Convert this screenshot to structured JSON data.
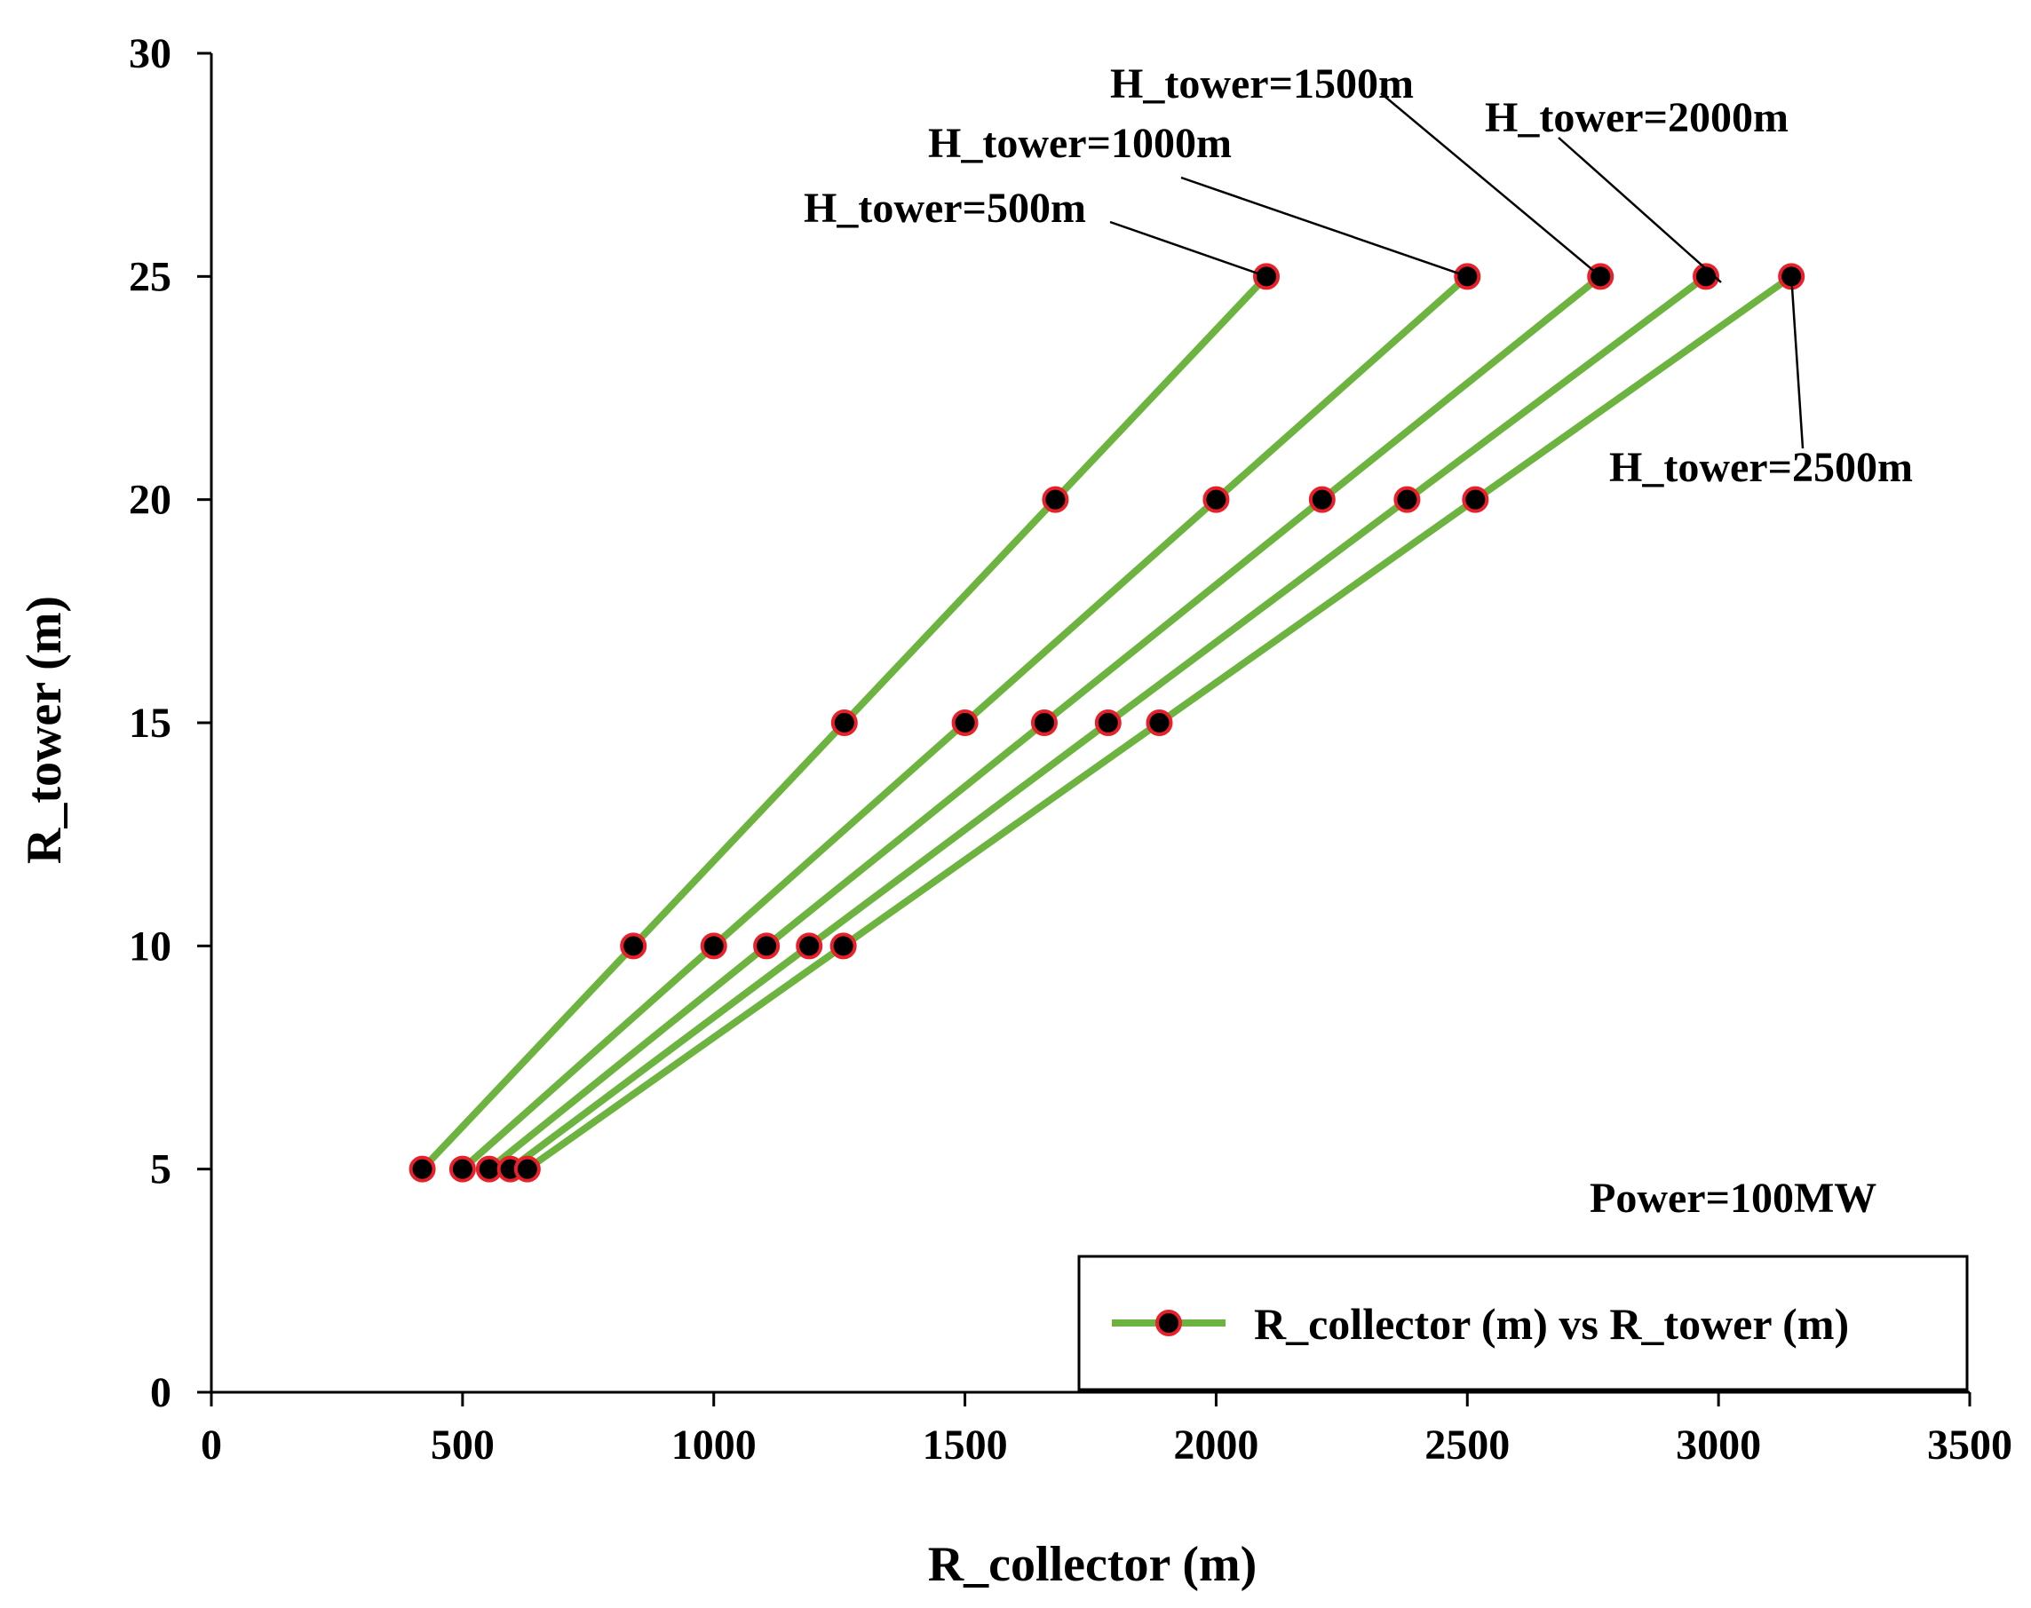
{
  "chart_data": {
    "type": "line",
    "xlabel": "R_collector (m)",
    "ylabel": "R_tower (m)",
    "xlim": [
      0,
      3500
    ],
    "ylim": [
      0,
      30
    ],
    "xticks": [
      0,
      500,
      1000,
      1500,
      2000,
      2500,
      3000,
      3500
    ],
    "yticks": [
      0,
      5,
      10,
      15,
      20,
      25,
      30
    ],
    "grid": false,
    "legend_position": "bottom-right",
    "legend_label": "R_collector (m) vs R_tower (m)",
    "line_color": "#6db33f",
    "marker_fill": "#000000",
    "marker_edge": "#e8202a",
    "power_note": "Power=100MW",
    "series": [
      {
        "name": "H_tower=500m",
        "x": [
          420,
          840,
          1260,
          1680,
          2100
        ],
        "y": [
          5,
          10,
          15,
          20,
          25
        ]
      },
      {
        "name": "H_tower=1000m",
        "x": [
          500,
          1000,
          1500,
          2000,
          2500
        ],
        "y": [
          5,
          10,
          15,
          20,
          25
        ]
      },
      {
        "name": "H_tower=1500m",
        "x": [
          553,
          1105,
          1658,
          2211,
          2765
        ],
        "y": [
          5,
          10,
          15,
          20,
          25
        ]
      },
      {
        "name": "H_tower=2000m",
        "x": [
          595,
          1190,
          1785,
          2380,
          2975
        ],
        "y": [
          5,
          10,
          15,
          20,
          25
        ]
      },
      {
        "name": "H_tower=2500m",
        "x": [
          629,
          1258,
          1887,
          2516,
          3145
        ],
        "y": [
          5,
          10,
          15,
          20,
          25
        ]
      }
    ],
    "annotations": [
      {
        "text": "H_tower=500m",
        "series": 0,
        "at_x": 2100,
        "at_y": 25
      },
      {
        "text": "H_tower=1000m",
        "series": 1,
        "at_x": 2500,
        "at_y": 25
      },
      {
        "text": "H_tower=1500m",
        "series": 2,
        "at_x": 2765,
        "at_y": 25
      },
      {
        "text": "H_tower=2000m",
        "series": 3,
        "at_x": 2975,
        "at_y": 25
      },
      {
        "text": "H_tower=2500m",
        "series": 4,
        "at_x": 3145,
        "at_y": 25
      }
    ]
  }
}
